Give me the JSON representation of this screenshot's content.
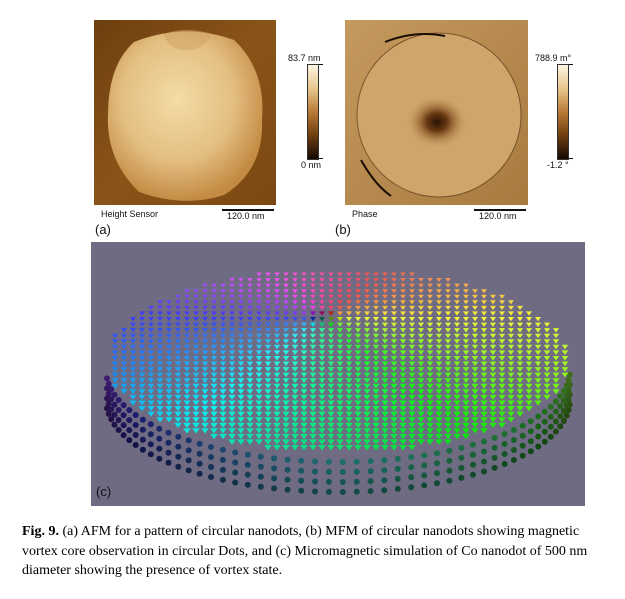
{
  "panel_a": {
    "letter": "(a)",
    "label": "Height Sensor",
    "scale_bar": "120.0 nm",
    "colorbar_max": "83.7 nm",
    "colorbar_min": "0 nm"
  },
  "panel_b": {
    "letter": "(b)",
    "label": "Phase",
    "scale_bar": "120.0 nm",
    "colorbar_max": "788.9 m°",
    "colorbar_min": "-1.2 °"
  },
  "panel_c": {
    "letter": "(c)"
  },
  "caption": {
    "lead": "Fig. 9.",
    "text": "(a) AFM for a pattern of circular nanodots, (b) MFM of circular nanodots showing magnetic vortex core observation in circular Dots, and (c) Micromagnetic simulation of Co nanodot of 500 nm diameter showing the presence of vortex state."
  },
  "colors": {
    "afm_bg": "#8a5418",
    "afm_dot": "#e6c58c",
    "mfm_bg": "#b98a4d",
    "sim_bg": "#6e6b82"
  }
}
